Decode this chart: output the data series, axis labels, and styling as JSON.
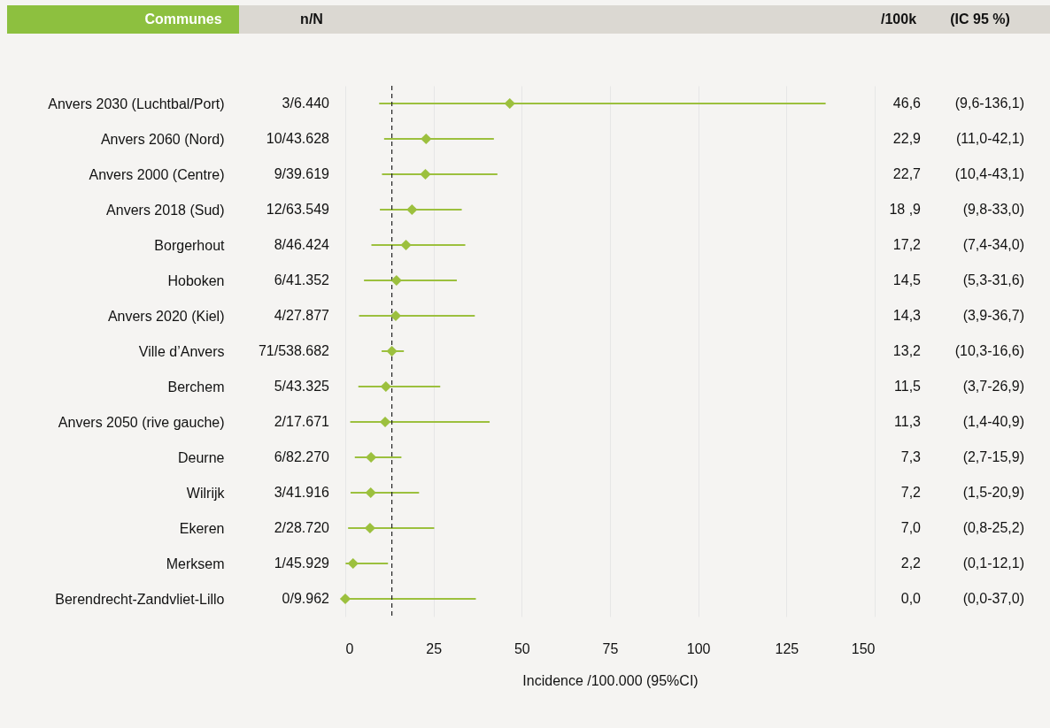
{
  "chart_data": {
    "type": "scatter",
    "orientation": "horizontal",
    "marker": "diamond",
    "color": "#9cc03e",
    "categories": [
      "Anvers 2030 (Luchtbal/Port)",
      "Anvers 2060 (Nord)",
      "Anvers 2000 (Centre)",
      "Anvers 2018 (Sud)",
      "Borgerhout",
      "Hoboken",
      "Anvers 2020 (Kiel)",
      "Ville d’Anvers",
      "Berchem",
      "Anvers 2050 (rive gauche)",
      "Deurne",
      "Wilrijk",
      "Ekeren",
      "Merksem",
      "Berendrecht-Zandvliet-Lillo"
    ],
    "values": [
      46.6,
      22.9,
      22.7,
      18.9,
      17.2,
      14.5,
      14.3,
      13.2,
      11.5,
      11.3,
      7.3,
      7.2,
      7.0,
      2.2,
      0.0
    ],
    "errors": [
      [
        9.6,
        136.1
      ],
      [
        11.0,
        42.1
      ],
      [
        10.4,
        43.1
      ],
      [
        9.8,
        33.0
      ],
      [
        7.4,
        34.0
      ],
      [
        5.3,
        31.6
      ],
      [
        3.9,
        36.7
      ],
      [
        10.3,
        16.6
      ],
      [
        3.7,
        26.9
      ],
      [
        1.4,
        40.9
      ],
      [
        2.7,
        15.9
      ],
      [
        1.5,
        20.9
      ],
      [
        0.8,
        25.2
      ],
      [
        0.1,
        12.1
      ],
      [
        0.0,
        37.0
      ]
    ],
    "value_labels": [
      "46,6",
      "22,9",
      "22,7",
      "18 ,9",
      "17,2",
      "14,5",
      "14,3",
      "13,2",
      "11,5",
      "11,3",
      "7,3",
      "7,2",
      "7,0",
      "2,2",
      "0,0"
    ],
    "xlim": [
      0,
      150
    ],
    "xticks": [
      0,
      25,
      50,
      75,
      100,
      125,
      150
    ],
    "xlabel": "Incidence /100.000  (95%CI)",
    "grid": "x",
    "ref_lines": [
      {
        "axis": "x",
        "value": 13.2,
        "line_style": "dashed",
        "color": "#222222"
      }
    ],
    "annotations": [
      "Communes",
      "n/N",
      "/100k",
      "(IC 95 %)",
      "3/6.440",
      "10/43.628",
      "9/39.619",
      "12/63.549",
      "8/46.424",
      "6/41.352",
      "4/27.877",
      "71/538.682",
      "5/43.325",
      "2/17.671",
      "6/82.270",
      "3/41.916",
      "2/28.720",
      "1/45.929",
      "0/9.962",
      "(9,6-136,1)",
      "(11,0-42,1)",
      "(10,4-43,1)",
      "(9,8-33,0)",
      "(7,4-34,0)",
      "(5,3-31,6)",
      "(3,9-36,7)",
      "(10,3-16,6)",
      "(3,7-26,9)",
      "(1,4-40,9)",
      "(2,7-15,9)",
      "(1,5-20,9)",
      "(0,8-25,2)",
      "(0,1-12,1)",
      "(0,0-37,0)"
    ]
  }
}
